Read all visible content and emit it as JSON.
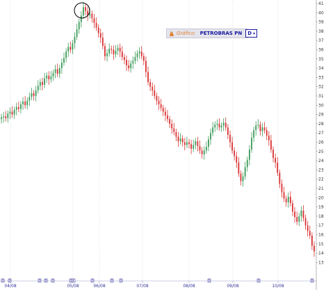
{
  "chart_data": {
    "type": "candlestick",
    "y_ticks": [
      "41",
      "40",
      "39",
      "38",
      "37",
      "36",
      "35",
      "34",
      "33",
      "32",
      "31",
      "30",
      "29",
      "28",
      "27",
      "26",
      "25",
      "24",
      "23",
      "22",
      "21",
      "20",
      "19",
      "18",
      "17",
      "16",
      "15",
      "14",
      "13"
    ],
    "x_ticks": [
      "04/08",
      "05/08",
      "06/08",
      "07/08",
      "08/08",
      "09/08",
      "10/08"
    ],
    "event_markers": [
      "D",
      "D",
      "D",
      "D",
      "D",
      "D",
      "E",
      "D",
      "D",
      "D",
      "D",
      "D",
      "D"
    ],
    "candle_closes": [
      28.7,
      28.8,
      28.6,
      29.1,
      29.3,
      29.0,
      29.5,
      29.8,
      29.6,
      30.1,
      30.4,
      30.0,
      30.5,
      30.9,
      31.3,
      31.0,
      31.6,
      32.1,
      32.5,
      32.2,
      32.9,
      33.2,
      32.8,
      33.1,
      33.5,
      33.9,
      33.4,
      34.0,
      34.6,
      35.1,
      35.8,
      36.3,
      36.0,
      36.7,
      37.4,
      38.2,
      39.0,
      39.7,
      40.6,
      40.2,
      39.7,
      39.9,
      39.4,
      38.9,
      38.4,
      37.8,
      37.3,
      36.4,
      35.3,
      35.6,
      36.1,
      36.0,
      35.5,
      35.9,
      36.2,
      35.8,
      35.2,
      34.9,
      34.3,
      34.0,
      34.5,
      34.8,
      35.2,
      35.6,
      35.8,
      35.3,
      34.8,
      33.6,
      32.5,
      32.0,
      31.6,
      31.0,
      30.5,
      30.1,
      29.7,
      29.3,
      28.9,
      28.5,
      28.0,
      27.5,
      27.1,
      26.6,
      26.1,
      26.4,
      26.0,
      25.7,
      26.0,
      25.8,
      25.3,
      25.7,
      26.1,
      25.6,
      25.1,
      24.7,
      25.1,
      25.5,
      26.3,
      27.0,
      27.6,
      27.9,
      28.0,
      27.6,
      27.8,
      28.1,
      27.6,
      26.8,
      26.0,
      25.1,
      24.5,
      23.8,
      22.6,
      21.8,
      22.3,
      23.3,
      24.1,
      25.2,
      26.5,
      27.3,
      27.8,
      27.9,
      27.2,
      27.6,
      27.3,
      26.7,
      26.2,
      25.2,
      24.3,
      23.8,
      22.7,
      21.5,
      20.6,
      19.9,
      19.5,
      20.1,
      19.4,
      18.5,
      17.9,
      17.4,
      18.0,
      18.6,
      17.8,
      17.0,
      16.4,
      15.9,
      14.8,
      14.2
    ],
    "annotation": "circle around peak"
  },
  "selector": {
    "label": "Gráfico:",
    "symbol": "PETROBRAS PN",
    "period": "D"
  },
  "colors": {
    "up": "#3a9a58",
    "down": "#d83030",
    "grid": "#c8c8c8",
    "axis_text": "#333399"
  }
}
